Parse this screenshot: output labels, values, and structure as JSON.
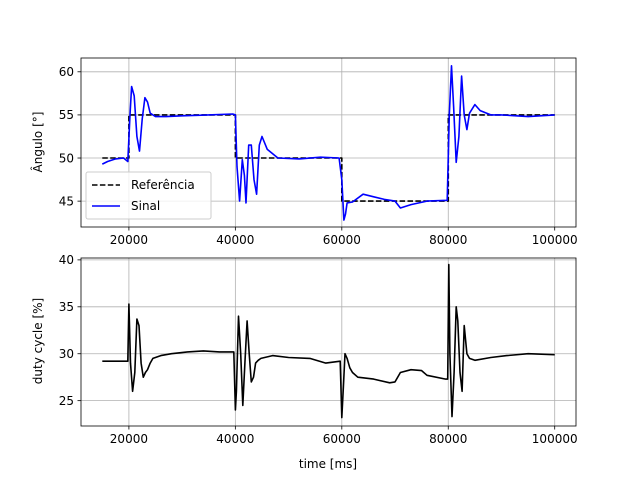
{
  "chart_data": [
    {
      "type": "line",
      "ylabel": "Ângulo [°]",
      "xlabel": "",
      "xlim": [
        11000,
        104000
      ],
      "ylim": [
        42,
        61.6
      ],
      "xticks": [
        20000,
        40000,
        60000,
        80000,
        100000
      ],
      "yticks": [
        45,
        50,
        55,
        60
      ],
      "grid": true,
      "legend_position": "lower-left",
      "series": [
        {
          "name": "Referência",
          "style": "dashed",
          "color": "#000000",
          "x": [
            15000,
            20000,
            20000,
            40000,
            40000,
            60000,
            60000,
            80000,
            80000,
            100000
          ],
          "y": [
            50,
            50,
            55,
            55,
            50,
            50,
            45,
            45,
            55,
            55
          ]
        },
        {
          "name": "Sinal",
          "style": "solid",
          "color": "#0000ff",
          "x": [
            15000,
            16000,
            17500,
            19000,
            19800,
            20200,
            20500,
            21000,
            21500,
            22000,
            22500,
            23000,
            23500,
            24000,
            25000,
            27000,
            30000,
            35000,
            39500,
            40000,
            40300,
            40800,
            41300,
            41700,
            42000,
            42500,
            43000,
            43500,
            44000,
            44500,
            45000,
            46000,
            48000,
            52000,
            56000,
            59500,
            60000,
            60400,
            60700,
            61000,
            62000,
            64000,
            66000,
            68000,
            70000,
            71000,
            73000,
            76000,
            79800,
            80200,
            80600,
            81000,
            81500,
            82000,
            82500,
            83000,
            83500,
            84000,
            85000,
            86000,
            88000,
            90000,
            95000,
            100000
          ],
          "y": [
            49.3,
            49.6,
            49.9,
            50.0,
            49.6,
            55.0,
            58.3,
            57.2,
            52.5,
            50.8,
            54.5,
            57.0,
            56.5,
            55.2,
            54.8,
            54.8,
            54.9,
            55.0,
            55.1,
            55.0,
            49.0,
            45.0,
            49.8,
            48.0,
            44.8,
            51.5,
            51.5,
            47.5,
            45.8,
            51.5,
            52.5,
            51.0,
            50.0,
            49.9,
            50.1,
            50.0,
            47.5,
            42.8,
            43.5,
            44.8,
            44.9,
            45.8,
            45.5,
            45.2,
            45.0,
            44.2,
            44.6,
            45.0,
            45.1,
            55.0,
            60.7,
            56.0,
            49.5,
            52.5,
            59.5,
            55.0,
            53.3,
            55.2,
            56.2,
            55.5,
            55.0,
            55.0,
            54.8,
            55.0
          ]
        }
      ]
    },
    {
      "type": "line",
      "ylabel": "duty cycle [%]",
      "xlabel": "time [ms]",
      "xlim": [
        11000,
        104000
      ],
      "ylim": [
        22.3,
        40.2
      ],
      "xticks": [
        20000,
        40000,
        60000,
        80000,
        100000
      ],
      "yticks": [
        25,
        30,
        35,
        40
      ],
      "grid": true,
      "series": [
        {
          "name": "",
          "style": "solid",
          "color": "#000000",
          "x": [
            15000,
            19800,
            20000,
            20300,
            20700,
            21100,
            21500,
            21900,
            22300,
            22700,
            23100,
            23500,
            24000,
            24500,
            26000,
            28000,
            31000,
            34000,
            37000,
            39700,
            40000,
            40200,
            40600,
            41000,
            41400,
            41800,
            42200,
            42600,
            43000,
            43400,
            43800,
            44300,
            44800,
            47000,
            50000,
            54000,
            57000,
            59700,
            60000,
            60300,
            60600,
            61000,
            61500,
            62000,
            63000,
            66000,
            69000,
            70000,
            71000,
            73000,
            75000,
            76000,
            79500,
            79900,
            80100,
            80300,
            80700,
            81100,
            81500,
            81800,
            82200,
            82600,
            83000,
            83500,
            84000,
            85000,
            88000,
            91000,
            95000,
            100000
          ],
          "y": [
            29.2,
            29.2,
            35.3,
            29.0,
            26.0,
            28.0,
            33.7,
            33.0,
            29.0,
            27.5,
            28.0,
            28.3,
            29.0,
            29.5,
            29.8,
            30.0,
            30.2,
            30.3,
            30.2,
            30.2,
            24.0,
            26.0,
            34.0,
            30.0,
            24.5,
            29.0,
            33.5,
            30.0,
            27.0,
            27.5,
            29.0,
            29.3,
            29.5,
            29.8,
            29.6,
            29.5,
            29.0,
            29.2,
            23.2,
            26.5,
            30.0,
            29.5,
            28.5,
            28.0,
            27.5,
            27.3,
            26.9,
            27.0,
            28.0,
            28.3,
            28.2,
            27.7,
            27.3,
            27.3,
            39.5,
            30.0,
            23.3,
            28.0,
            35.0,
            33.5,
            28.0,
            26.0,
            33.0,
            30.0,
            29.5,
            29.3,
            29.6,
            29.8,
            30.0,
            29.9
          ]
        }
      ]
    }
  ]
}
